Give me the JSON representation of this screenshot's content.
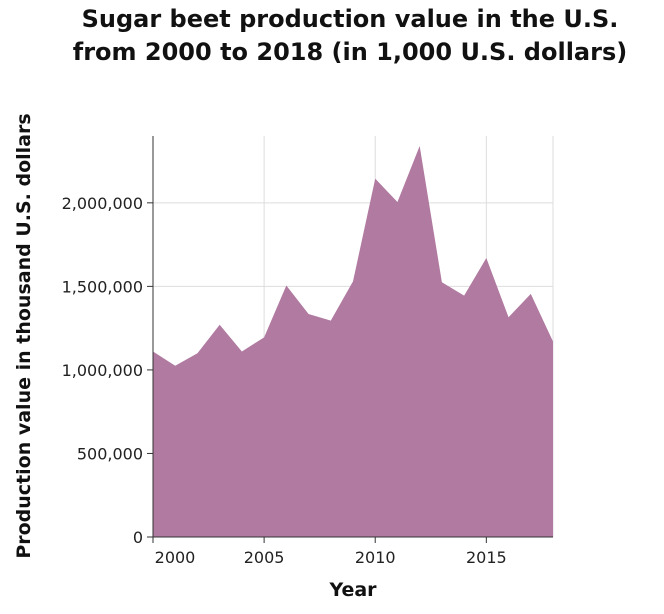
{
  "chart_data": {
    "type": "area",
    "title_lines": [
      "Sugar beet production value in the U.S.",
      "from 2000 to 2018 (in 1,000 U.S. dollars)"
    ],
    "xlabel": "Year",
    "ylabel": "Production value in thousand U.S. dollars",
    "x": [
      2000,
      2001,
      2002,
      2003,
      2004,
      2005,
      2006,
      2007,
      2008,
      2009,
      2010,
      2011,
      2012,
      2013,
      2014,
      2015,
      2016,
      2017,
      2018
    ],
    "values": [
      1110000,
      1025000,
      1100000,
      1270000,
      1110000,
      1195000,
      1505000,
      1335000,
      1295000,
      1530000,
      2145000,
      2005000,
      2340000,
      1525000,
      1445000,
      1670000,
      1315000,
      1455000,
      1170000
    ],
    "xlim": [
      2000,
      2018
    ],
    "ylim": [
      0,
      2400000
    ],
    "x_ticks": [
      2000,
      2005,
      2010,
      2015
    ],
    "x_tick_labels": [
      "2000",
      "2005",
      "2010",
      "2015"
    ],
    "y_ticks": [
      0,
      500000,
      1000000,
      1500000,
      2000000
    ],
    "y_tick_labels": [
      "0",
      "500,000",
      "1,000,000",
      "1,500,000",
      "2,000,000"
    ],
    "fill_color": "#b07aa1",
    "grid": true
  }
}
